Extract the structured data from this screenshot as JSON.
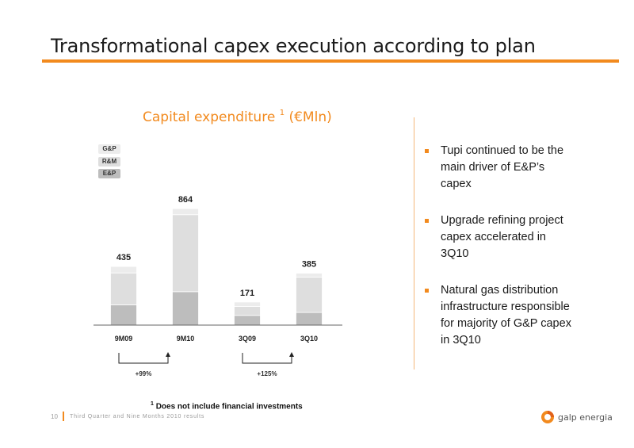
{
  "slide": {
    "title": "Transformational capex execution according to plan",
    "page_number": "10",
    "footer_text": "Third Quarter and Nine Months 2010 results",
    "footnote_marker": "1",
    "footnote_text": "Does not include financial investments",
    "logo_text": "galp energia",
    "accent_color": "#f28a1e"
  },
  "chart_data": {
    "type": "bar",
    "stacked": true,
    "title": "Capital expenditure",
    "title_superscript": "1",
    "title_unit": "(€Mln)",
    "categories": [
      "9M09",
      "9M10",
      "3Q09",
      "3Q10"
    ],
    "totals": [
      435,
      864,
      171,
      385
    ],
    "total_labels": [
      "435",
      "864",
      "171",
      "385"
    ],
    "series": [
      {
        "name": "E&P",
        "color": "#bdbdbd",
        "values": [
          150,
          248,
          72,
          94
        ]
      },
      {
        "name": "R&M",
        "color": "#dedede",
        "values": [
          237,
          571,
          67,
          262
        ]
      },
      {
        "name": "G&P",
        "color": "#ececec",
        "values": [
          48,
          45,
          32,
          29
        ]
      }
    ],
    "legend_order": [
      "G&P",
      "R&M",
      "E&P"
    ],
    "legend_position": "top-left",
    "growth": [
      {
        "label": "+99%",
        "from": "9M09",
        "to": "9M10"
      },
      {
        "label": "+125%",
        "from": "3Q09",
        "to": "3Q10"
      }
    ],
    "ylim": [
      0,
      900
    ],
    "grid": false
  },
  "bullets": [
    "Tupi continued to be the main driver of E&P’s capex",
    "Upgrade refining project capex accelerated in 3Q10",
    "Natural gas distribution infrastructure responsible for majority of G&P capex in 3Q10"
  ]
}
